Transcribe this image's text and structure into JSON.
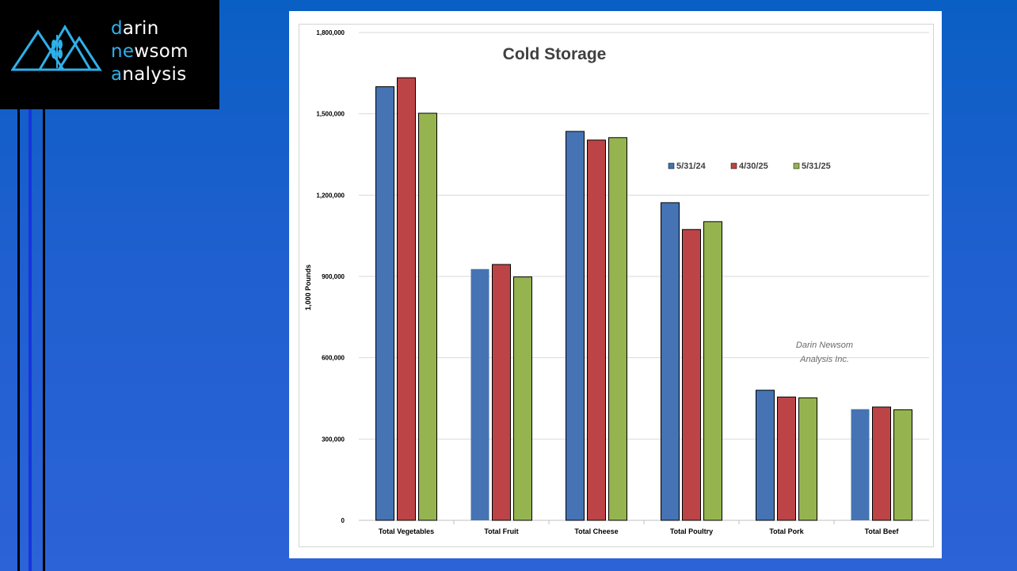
{
  "logo": {
    "line1_first": "d",
    "line1_rest": "arin",
    "line2_first": "ne",
    "line2_mid": "w",
    "line2_rest": "som",
    "line3_first": "a",
    "line3_rest": "nalysis",
    "mark_icon": "mountains-wheat-icon"
  },
  "colors": {
    "accent": "#2fb0ea",
    "series": [
      "#4573b4",
      "#bd4446",
      "#95b450"
    ]
  },
  "chart_data": {
    "type": "bar",
    "title": "Cold Storage",
    "ylabel": "1,000 Pounds",
    "xlabel": "",
    "ylim": [
      0,
      1800000
    ],
    "yticks": [
      "0",
      "300,000",
      "600,000",
      "900,000",
      "1,200,000",
      "1,500,000",
      "1,800,000"
    ],
    "grid": true,
    "legend_position": "upper-right",
    "watermark": [
      "Darin Newsom",
      "Analysis Inc."
    ],
    "categories": [
      "Total Vegetables",
      "Total Fruit",
      "Total Cheese",
      "Total Poultry",
      "Total Pork",
      "Total Beef"
    ],
    "series": [
      {
        "name": "5/31/24",
        "values": [
          1600000,
          927000,
          1435000,
          1172000,
          480000,
          410000
        ]
      },
      {
        "name": "4/30/25",
        "values": [
          1633000,
          944000,
          1403000,
          1073000,
          455000,
          418000
        ]
      },
      {
        "name": "5/31/25",
        "values": [
          1502000,
          898000,
          1412000,
          1102000,
          452000,
          408000
        ]
      }
    ]
  }
}
